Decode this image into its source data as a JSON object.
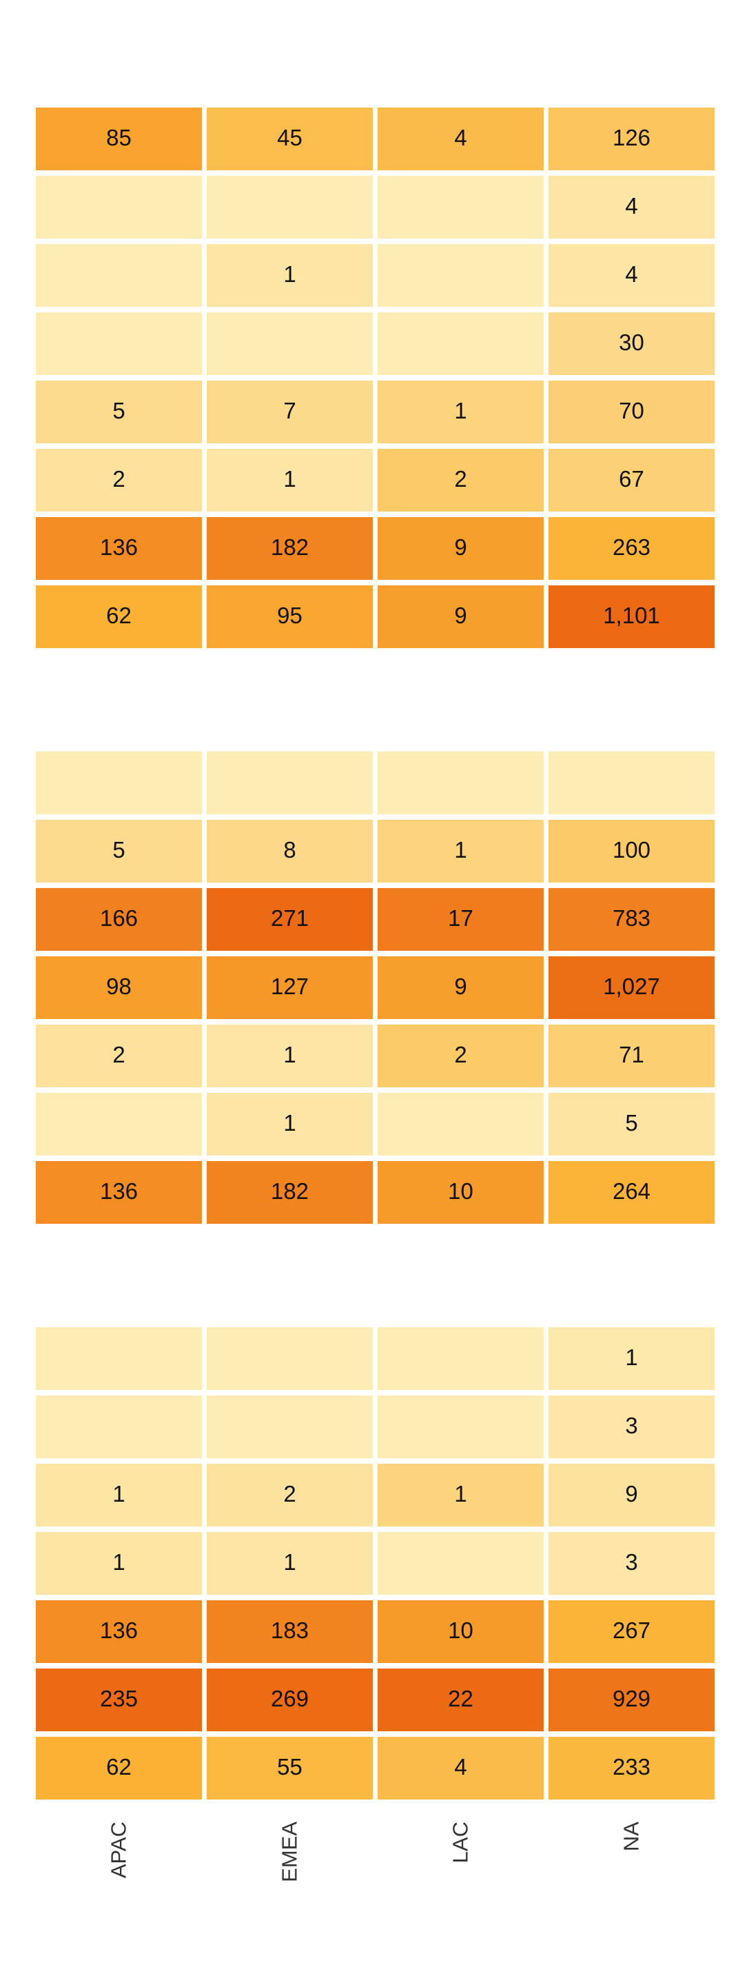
{
  "chart_data": {
    "type": "heatmap",
    "columns": [
      "APAC",
      "EMEA",
      "LAC",
      "NA"
    ],
    "colors": [
      "#fdecb4",
      "#fbb335",
      "#ec6a13"
    ],
    "panels": [
      {
        "rows": [
          [
            85,
            45,
            4,
            126
          ],
          [
            null,
            null,
            null,
            4
          ],
          [
            null,
            1,
            null,
            4
          ],
          [
            null,
            null,
            null,
            30
          ],
          [
            5,
            7,
            1,
            70
          ],
          [
            2,
            1,
            2,
            67
          ],
          [
            136,
            182,
            9,
            263
          ],
          [
            62,
            95,
            9,
            1101
          ]
        ]
      },
      {
        "rows": [
          [
            null,
            null,
            null,
            null
          ],
          [
            5,
            8,
            1,
            100
          ],
          [
            166,
            271,
            17,
            783
          ],
          [
            98,
            127,
            9,
            1027
          ],
          [
            2,
            1,
            2,
            71
          ],
          [
            null,
            1,
            null,
            5
          ],
          [
            136,
            182,
            10,
            264
          ]
        ]
      },
      {
        "rows": [
          [
            null,
            null,
            null,
            1
          ],
          [
            null,
            null,
            null,
            3
          ],
          [
            1,
            2,
            1,
            9
          ],
          [
            1,
            1,
            null,
            3
          ],
          [
            136,
            183,
            10,
            267
          ],
          [
            235,
            269,
            22,
            929
          ],
          [
            62,
            55,
            4,
            233
          ]
        ]
      }
    ]
  }
}
